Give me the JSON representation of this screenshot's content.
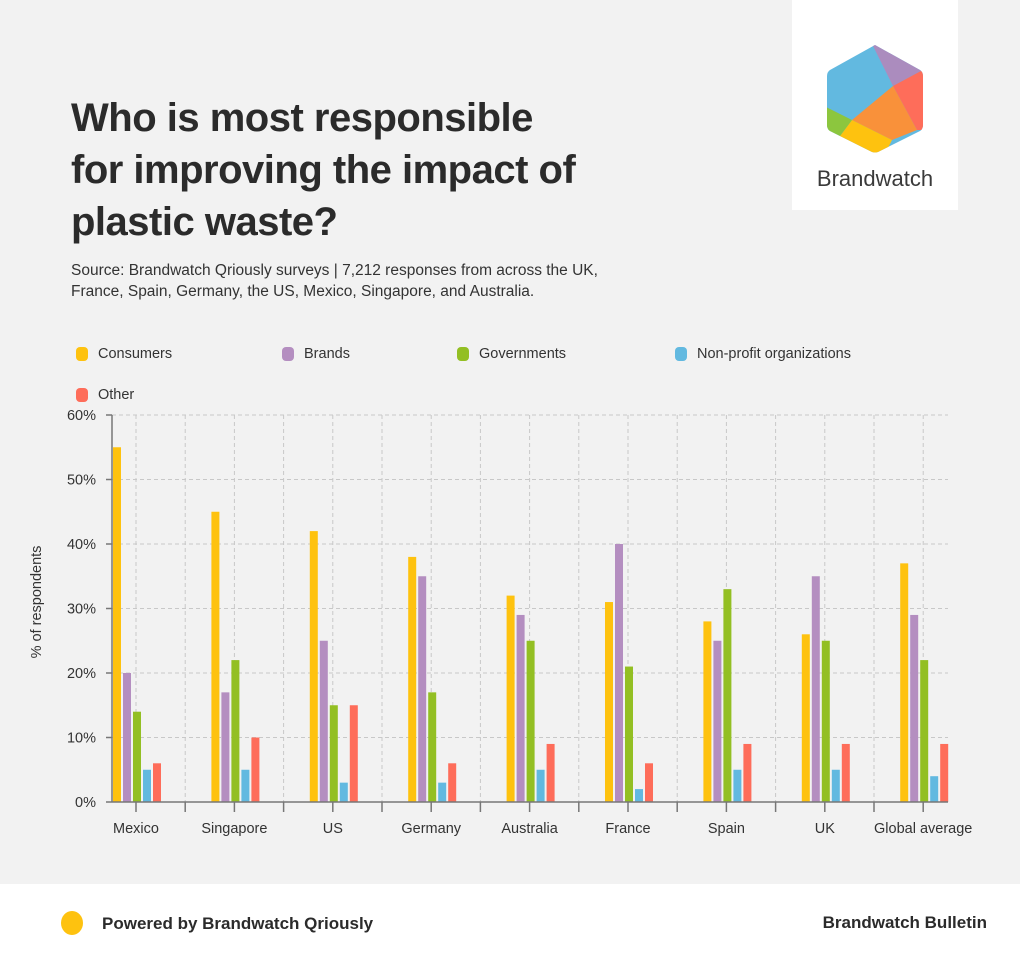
{
  "header": {
    "title": "Who is most responsible for improving the impact of plastic waste?",
    "subtitle": "Source: Brandwatch Qriously surveys | 7,212 responses from across the UK, France, Spain, Germany, the US, Mexico, Singapore, and Australia."
  },
  "logo": {
    "text": "Brandwatch",
    "icon": "brandwatch-hexagon-logo"
  },
  "footer": {
    "left_label": "Powered by Brandwatch Qriously",
    "right_label": "Brandwatch Bulletin"
  },
  "chart_data": {
    "type": "bar",
    "title": "Who is most responsible for improving the impact of plastic waste?",
    "xlabel": "",
    "ylabel": "% of respondents",
    "ylim": [
      0,
      60
    ],
    "yticks": [
      "0%",
      "10%",
      "20%",
      "30%",
      "40%",
      "50%",
      "60%"
    ],
    "grid": true,
    "legend_position": "top",
    "categories": [
      "Mexico",
      "Singapore",
      "US",
      "Germany",
      "Australia",
      "France",
      "Spain",
      "UK",
      "Global average"
    ],
    "series": [
      {
        "name": "Consumers",
        "color": "#fec20f",
        "values": [
          55,
          45,
          42,
          38,
          32,
          31,
          28,
          26,
          37
        ]
      },
      {
        "name": "Brands",
        "color": "#b48ec0",
        "values": [
          20,
          17,
          25,
          35,
          29,
          40,
          25,
          35,
          29
        ]
      },
      {
        "name": "Governments",
        "color": "#93bf23",
        "values": [
          14,
          22,
          15,
          17,
          25,
          21,
          33,
          25,
          22
        ]
      },
      {
        "name": "Non-profit organizations",
        "color": "#62b9e0",
        "values": [
          5,
          5,
          3,
          3,
          5,
          2,
          5,
          5,
          4
        ]
      },
      {
        "name": "Other",
        "color": "#fe6d5a",
        "values": [
          6,
          10,
          15,
          6,
          9,
          6,
          9,
          9,
          9
        ]
      }
    ]
  }
}
